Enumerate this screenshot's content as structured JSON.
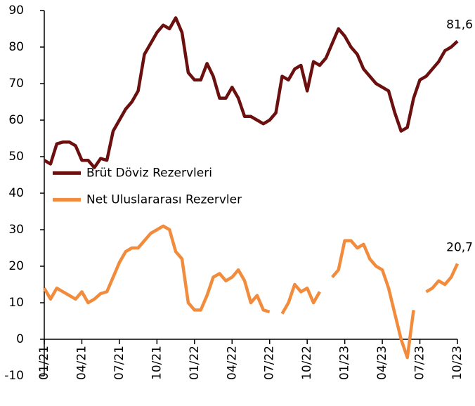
{
  "chart_data": {
    "type": "line",
    "categories": [
      "01/21",
      null,
      null,
      null,
      null,
      null,
      "04/21",
      null,
      null,
      null,
      null,
      null,
      "07/21",
      null,
      null,
      null,
      null,
      null,
      "10/21",
      null,
      null,
      null,
      null,
      null,
      "01/22",
      null,
      null,
      null,
      null,
      null,
      "04/22",
      null,
      null,
      null,
      null,
      null,
      "07/22",
      null,
      null,
      null,
      null,
      null,
      "10/22",
      null,
      null,
      null,
      null,
      null,
      "01/23",
      null,
      null,
      null,
      null,
      null,
      "04/23",
      null,
      null,
      null,
      null,
      null,
      "07/23",
      null,
      null,
      null,
      null,
      null,
      "10/23"
    ],
    "series": [
      {
        "name": "Brüt Döviz Rezervleri",
        "color": "#6b0f0f",
        "values": [
          49,
          48,
          53.5,
          54,
          54,
          53,
          49,
          49,
          47,
          49.5,
          49,
          57,
          60,
          63,
          65,
          68,
          78,
          81,
          84,
          86,
          85,
          88,
          84,
          73,
          71,
          71,
          75.5,
          72,
          66,
          66,
          69,
          66,
          61,
          61,
          60,
          59,
          60,
          62,
          72,
          71,
          74,
          75,
          68,
          76,
          75,
          77,
          81,
          85,
          83,
          80,
          78,
          74,
          72,
          70,
          69,
          68,
          62,
          57,
          58,
          66,
          71,
          72,
          74,
          76,
          79,
          80,
          81.6
        ],
        "value_labels": [
          null,
          null,
          null,
          null,
          null,
          null,
          null,
          null,
          null,
          null,
          null,
          null,
          null,
          null,
          null,
          null,
          null,
          null,
          null,
          null,
          null,
          null,
          null,
          null,
          null,
          null,
          null,
          null,
          null,
          null,
          null,
          null,
          null,
          null,
          null,
          null,
          null,
          null,
          null,
          null,
          null,
          null,
          null,
          null,
          null,
          null,
          null,
          null,
          null,
          null,
          null,
          null,
          null,
          null,
          null,
          null,
          null,
          null,
          null,
          null,
          null,
          null,
          null,
          null,
          null,
          null,
          "81,6"
        ]
      },
      {
        "name": "Net Uluslararası Rezervler",
        "color": "#f28c3c",
        "values": [
          14,
          11,
          14,
          13,
          12,
          11,
          13,
          10,
          11,
          12.5,
          13,
          17,
          21,
          24,
          25,
          25,
          27,
          29,
          30,
          31,
          30,
          24,
          22,
          10,
          8,
          8,
          12,
          17,
          18,
          16,
          17,
          19,
          16,
          10,
          12,
          8,
          7.5,
          null,
          7,
          10,
          15,
          13,
          14,
          10,
          13,
          null,
          17,
          19,
          27,
          27,
          25,
          26,
          22,
          20,
          19,
          14,
          7,
          0,
          -5,
          8,
          null,
          13,
          14,
          16,
          15,
          17,
          20.7
        ],
        "value_labels": [
          null,
          null,
          null,
          null,
          null,
          null,
          null,
          null,
          null,
          null,
          null,
          null,
          null,
          null,
          null,
          null,
          null,
          null,
          null,
          null,
          null,
          null,
          null,
          null,
          null,
          null,
          null,
          null,
          null,
          null,
          null,
          null,
          null,
          null,
          null,
          null,
          null,
          null,
          null,
          null,
          null,
          null,
          null,
          null,
          null,
          null,
          null,
          null,
          null,
          null,
          null,
          null,
          null,
          null,
          null,
          null,
          null,
          null,
          null,
          null,
          null,
          null,
          null,
          null,
          null,
          null,
          "20,7"
        ]
      }
    ],
    "ylim": [
      -10,
      90
    ],
    "yticks": [
      -10,
      0,
      10,
      20,
      30,
      40,
      50,
      60,
      70,
      80,
      90
    ],
    "grid": false,
    "legend": "left"
  }
}
